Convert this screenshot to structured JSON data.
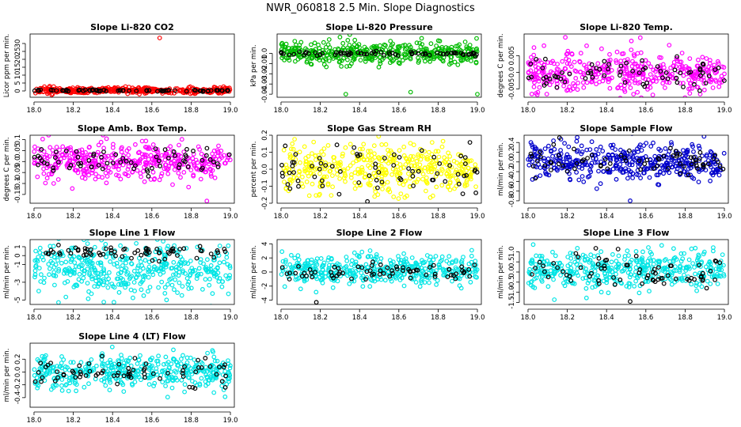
{
  "figure": {
    "title": "NWR_060818  2.5 Min. Slope Diagnostics",
    "xlim": [
      17.98,
      19.02
    ]
  },
  "chart_data": [
    {
      "type": "scatter",
      "title": "Slope Li-820 CO2",
      "ylabel": "Licor ppm per min.",
      "xlim": [
        17.98,
        19.02
      ],
      "ylim": [
        -4,
        36
      ],
      "xticks": [
        18.0,
        18.2,
        18.4,
        18.6,
        18.8,
        19.0
      ],
      "xtick_labels": [
        "18.0",
        "18.2",
        "18.4",
        "18.6",
        "18.8",
        "19.0"
      ],
      "yticks": [
        0,
        5,
        10,
        15,
        20,
        25,
        30
      ],
      "ytick_labels": [
        "0",
        "5",
        "10",
        "15",
        "20",
        "25",
        "30"
      ],
      "series": [
        {
          "name": "all",
          "color": "#ff0000",
          "center": 0.3,
          "spread": 0.9,
          "outliers": [
            {
              "x": 18.64,
              "y": 33.5
            },
            {
              "x": 18.08,
              "y": 3.0
            },
            {
              "x": 18.09,
              "y": -2.5
            }
          ]
        },
        {
          "name": "selected",
          "color": "#000000",
          "center": 0.2,
          "spread": 0.3
        }
      ]
    },
    {
      "type": "scatter",
      "title": "Slope Li-820 Pressure",
      "ylabel": "kPa per min.",
      "xlim": [
        17.98,
        19.02
      ],
      "ylim": [
        -0.043,
        0.019
      ],
      "xticks": [
        18.0,
        18.2,
        18.4,
        18.6,
        18.8,
        19.0
      ],
      "xtick_labels": [
        "18.0",
        "18.2",
        "18.4",
        "18.6",
        "18.8",
        "19.0"
      ],
      "yticks": [
        0.0,
        -0.01,
        -0.02,
        -0.03,
        -0.04
      ],
      "ytick_labels": [
        "0.0",
        "-0.01",
        "-0.02",
        "-0.03",
        "-0.04"
      ],
      "series": [
        {
          "name": "all",
          "color": "#00bb00",
          "center": 0.0,
          "spread": 0.005,
          "outliers": [
            {
              "x": 18.33,
              "y": -0.04
            },
            {
              "x": 18.66,
              "y": -0.038
            },
            {
              "x": 19.0,
              "y": -0.04
            },
            {
              "x": 18.3,
              "y": 0.016
            }
          ]
        },
        {
          "name": "selected",
          "color": "#000000",
          "center": 0.0,
          "spread": 0.001
        }
      ]
    },
    {
      "type": "scatter",
      "title": "Slope Li-820 Temp.",
      "ylabel": "degrees C per min.",
      "xlim": [
        17.98,
        19.02
      ],
      "ylim": [
        -0.0075,
        0.0115
      ],
      "xticks": [
        18.0,
        18.2,
        18.4,
        18.6,
        18.8,
        19.0
      ],
      "xtick_labels": [
        "18.0",
        "18.2",
        "18.4",
        "18.6",
        "18.8",
        "19.0"
      ],
      "yticks": [
        0.005,
        0.0,
        -0.005
      ],
      "ytick_labels": [
        "0.005",
        "0.0",
        "-0.005"
      ],
      "series": [
        {
          "name": "all",
          "color": "#ff00ff",
          "center": 0.0,
          "spread": 0.003,
          "outliers": [
            {
              "x": 18.19,
              "y": 0.0105
            },
            {
              "x": 18.05,
              "y": -0.006
            }
          ]
        },
        {
          "name": "selected",
          "color": "#000000",
          "center": 0.0,
          "spread": 0.0025
        }
      ]
    },
    {
      "type": "scatter",
      "title": "Slope Amb. Box Temp.",
      "ylabel": "degrees C per min.",
      "xlim": [
        17.98,
        19.02
      ],
      "ylim": [
        -0.19,
        0.12
      ],
      "xticks": [
        18.0,
        18.2,
        18.4,
        18.6,
        18.8,
        19.0
      ],
      "xtick_labels": [
        "18.0",
        "18.2",
        "18.4",
        "18.6",
        "18.8",
        "19.0"
      ],
      "yticks": [
        0.1,
        0.05,
        0.0,
        -0.05,
        -0.1,
        -0.15
      ],
      "ytick_labels": [
        "0.1",
        "0.05",
        "0.0",
        "-0.05",
        "-0.1",
        "-0.15"
      ],
      "series": [
        {
          "name": "all",
          "color": "#ff00ff",
          "center": 0.0,
          "spread": 0.045,
          "outliers": [
            {
              "x": 18.88,
              "y": -0.18
            },
            {
              "x": 18.1,
              "y": -0.1
            }
          ]
        },
        {
          "name": "selected",
          "color": "#000000",
          "center": 0.0,
          "spread": 0.03
        }
      ]
    },
    {
      "type": "scatter",
      "title": "Slope Gas Stream RH",
      "ylabel": "percent per min.",
      "xlim": [
        17.98,
        19.02
      ],
      "ylim": [
        -0.2,
        0.2
      ],
      "xticks": [
        18.0,
        18.2,
        18.4,
        18.6,
        18.8,
        19.0
      ],
      "xtick_labels": [
        "18.0",
        "18.2",
        "18.4",
        "18.6",
        "18.8",
        "19.0"
      ],
      "yticks": [
        0.2,
        0.1,
        0.0,
        -0.1,
        -0.2
      ],
      "ytick_labels": [
        "0.2",
        "0.1",
        "0.0",
        "-0.1",
        "-0.2"
      ],
      "series": [
        {
          "name": "all",
          "color": "#ffff00",
          "center": 0.0,
          "spread": 0.07
        },
        {
          "name": "selected",
          "color": "#000000",
          "center": 0.0,
          "spread": 0.06,
          "outliers": [
            {
              "x": 18.44,
              "y": -0.19
            }
          ]
        }
      ]
    },
    {
      "type": "scatter",
      "title": "Slope Sample Flow",
      "ylabel": "ml/min per min.",
      "xlim": [
        17.98,
        19.02
      ],
      "ylim": [
        -0.85,
        0.55
      ],
      "xticks": [
        18.0,
        18.2,
        18.4,
        18.6,
        18.8,
        19.0
      ],
      "xtick_labels": [
        "18.0",
        "18.2",
        "18.4",
        "18.6",
        "18.8",
        "19.0"
      ],
      "yticks": [
        0.4,
        0.2,
        0.0,
        -0.2,
        -0.4,
        -0.6,
        -0.8
      ],
      "ytick_labels": [
        "0.4",
        "0.2",
        "0.0",
        "-0.2",
        "-0.4",
        "-0.6",
        "-0.8"
      ],
      "series": [
        {
          "name": "all",
          "color": "#0000cc",
          "center": 0.0,
          "spread": 0.18,
          "outliers": [
            {
              "x": 18.52,
              "y": -0.8
            },
            {
              "x": 18.35,
              "y": -0.55
            }
          ]
        },
        {
          "name": "selected",
          "color": "#000000",
          "center": 0.02,
          "spread": 0.15,
          "outliers": [
            {
              "x": 18.16,
              "y": 0.5
            }
          ]
        }
      ]
    },
    {
      "type": "scatter",
      "title": "Slope Line 1 Flow",
      "ylabel": "ml/min per min.",
      "xlim": [
        17.98,
        19.02
      ],
      "ylim": [
        -5.5,
        1.8
      ],
      "xticks": [
        18.0,
        18.2,
        18.4,
        18.6,
        18.8,
        19.0
      ],
      "xtick_labels": [
        "18.0",
        "18.2",
        "18.4",
        "18.6",
        "18.8",
        "19.0"
      ],
      "yticks": [
        1,
        0,
        -1,
        -3,
        -5
      ],
      "ytick_labels": [
        "1",
        "0",
        "-1",
        "-3",
        "-5"
      ],
      "series": [
        {
          "name": "all",
          "color": "#00e5e5",
          "center": -1.5,
          "spread": 1.5
        },
        {
          "name": "selected",
          "color": "#000000",
          "center": 0.4,
          "spread": 0.4
        }
      ]
    },
    {
      "type": "scatter",
      "title": "Slope Line 2 Flow",
      "ylabel": "ml/min per min.",
      "xlim": [
        17.98,
        19.02
      ],
      "ylim": [
        -4.6,
        4.6
      ],
      "xticks": [
        18.0,
        18.2,
        18.4,
        18.6,
        18.8,
        19.0
      ],
      "xtick_labels": [
        "18.0",
        "18.2",
        "18.4",
        "18.6",
        "18.8",
        "19.0"
      ],
      "yticks": [
        4,
        2,
        0,
        -2,
        -4
      ],
      "ytick_labels": [
        "4",
        "2",
        "0",
        "-2",
        "-4"
      ],
      "series": [
        {
          "name": "all",
          "color": "#00e5e5",
          "center": 0.3,
          "spread": 1.0
        },
        {
          "name": "selected",
          "color": "#000000",
          "center": 0.0,
          "spread": 0.6,
          "outliers": [
            {
              "x": 18.18,
              "y": -4.3
            }
          ]
        }
      ]
    },
    {
      "type": "scatter",
      "title": "Slope Line 3 Flow",
      "ylabel": "ml/min per min.",
      "xlim": [
        17.98,
        19.02
      ],
      "ylim": [
        -1.6,
        1.6
      ],
      "xticks": [
        18.0,
        18.2,
        18.4,
        18.6,
        18.8,
        19.0
      ],
      "xtick_labels": [
        "18.0",
        "18.2",
        "18.4",
        "18.6",
        "18.8",
        "19.0"
      ],
      "yticks": [
        1.0,
        0.5,
        0.0,
        -0.5,
        -1.0,
        -1.5
      ],
      "ytick_labels": [
        "1.0",
        "0.5",
        "0.0",
        "-0.5",
        "-1.0",
        "-1.5"
      ],
      "series": [
        {
          "name": "all",
          "color": "#00e5e5",
          "center": 0.1,
          "spread": 0.45
        },
        {
          "name": "selected",
          "color": "#000000",
          "center": 0.0,
          "spread": 0.5,
          "outliers": [
            {
              "x": 18.52,
              "y": -1.45
            }
          ]
        }
      ]
    },
    {
      "type": "scatter",
      "title": "Slope Line 4 (LT) Flow",
      "ylabel": "ml/min per min.",
      "xlim": [
        17.98,
        19.02
      ],
      "ylim": [
        -0.55,
        0.45
      ],
      "xticks": [
        18.0,
        18.2,
        18.4,
        18.6,
        18.8,
        19.0
      ],
      "xtick_labels": [
        "18.0",
        "18.2",
        "18.4",
        "18.6",
        "18.8",
        "19.0"
      ],
      "yticks": [
        0.2,
        0.0,
        -0.2,
        -0.4
      ],
      "ytick_labels": [
        "0.2",
        "0.0",
        "-0.2",
        "-0.4"
      ],
      "series": [
        {
          "name": "all",
          "color": "#00e5e5",
          "center": 0.0,
          "spread": 0.13
        },
        {
          "name": "selected",
          "color": "#000000",
          "center": 0.0,
          "spread": 0.12
        }
      ]
    }
  ]
}
